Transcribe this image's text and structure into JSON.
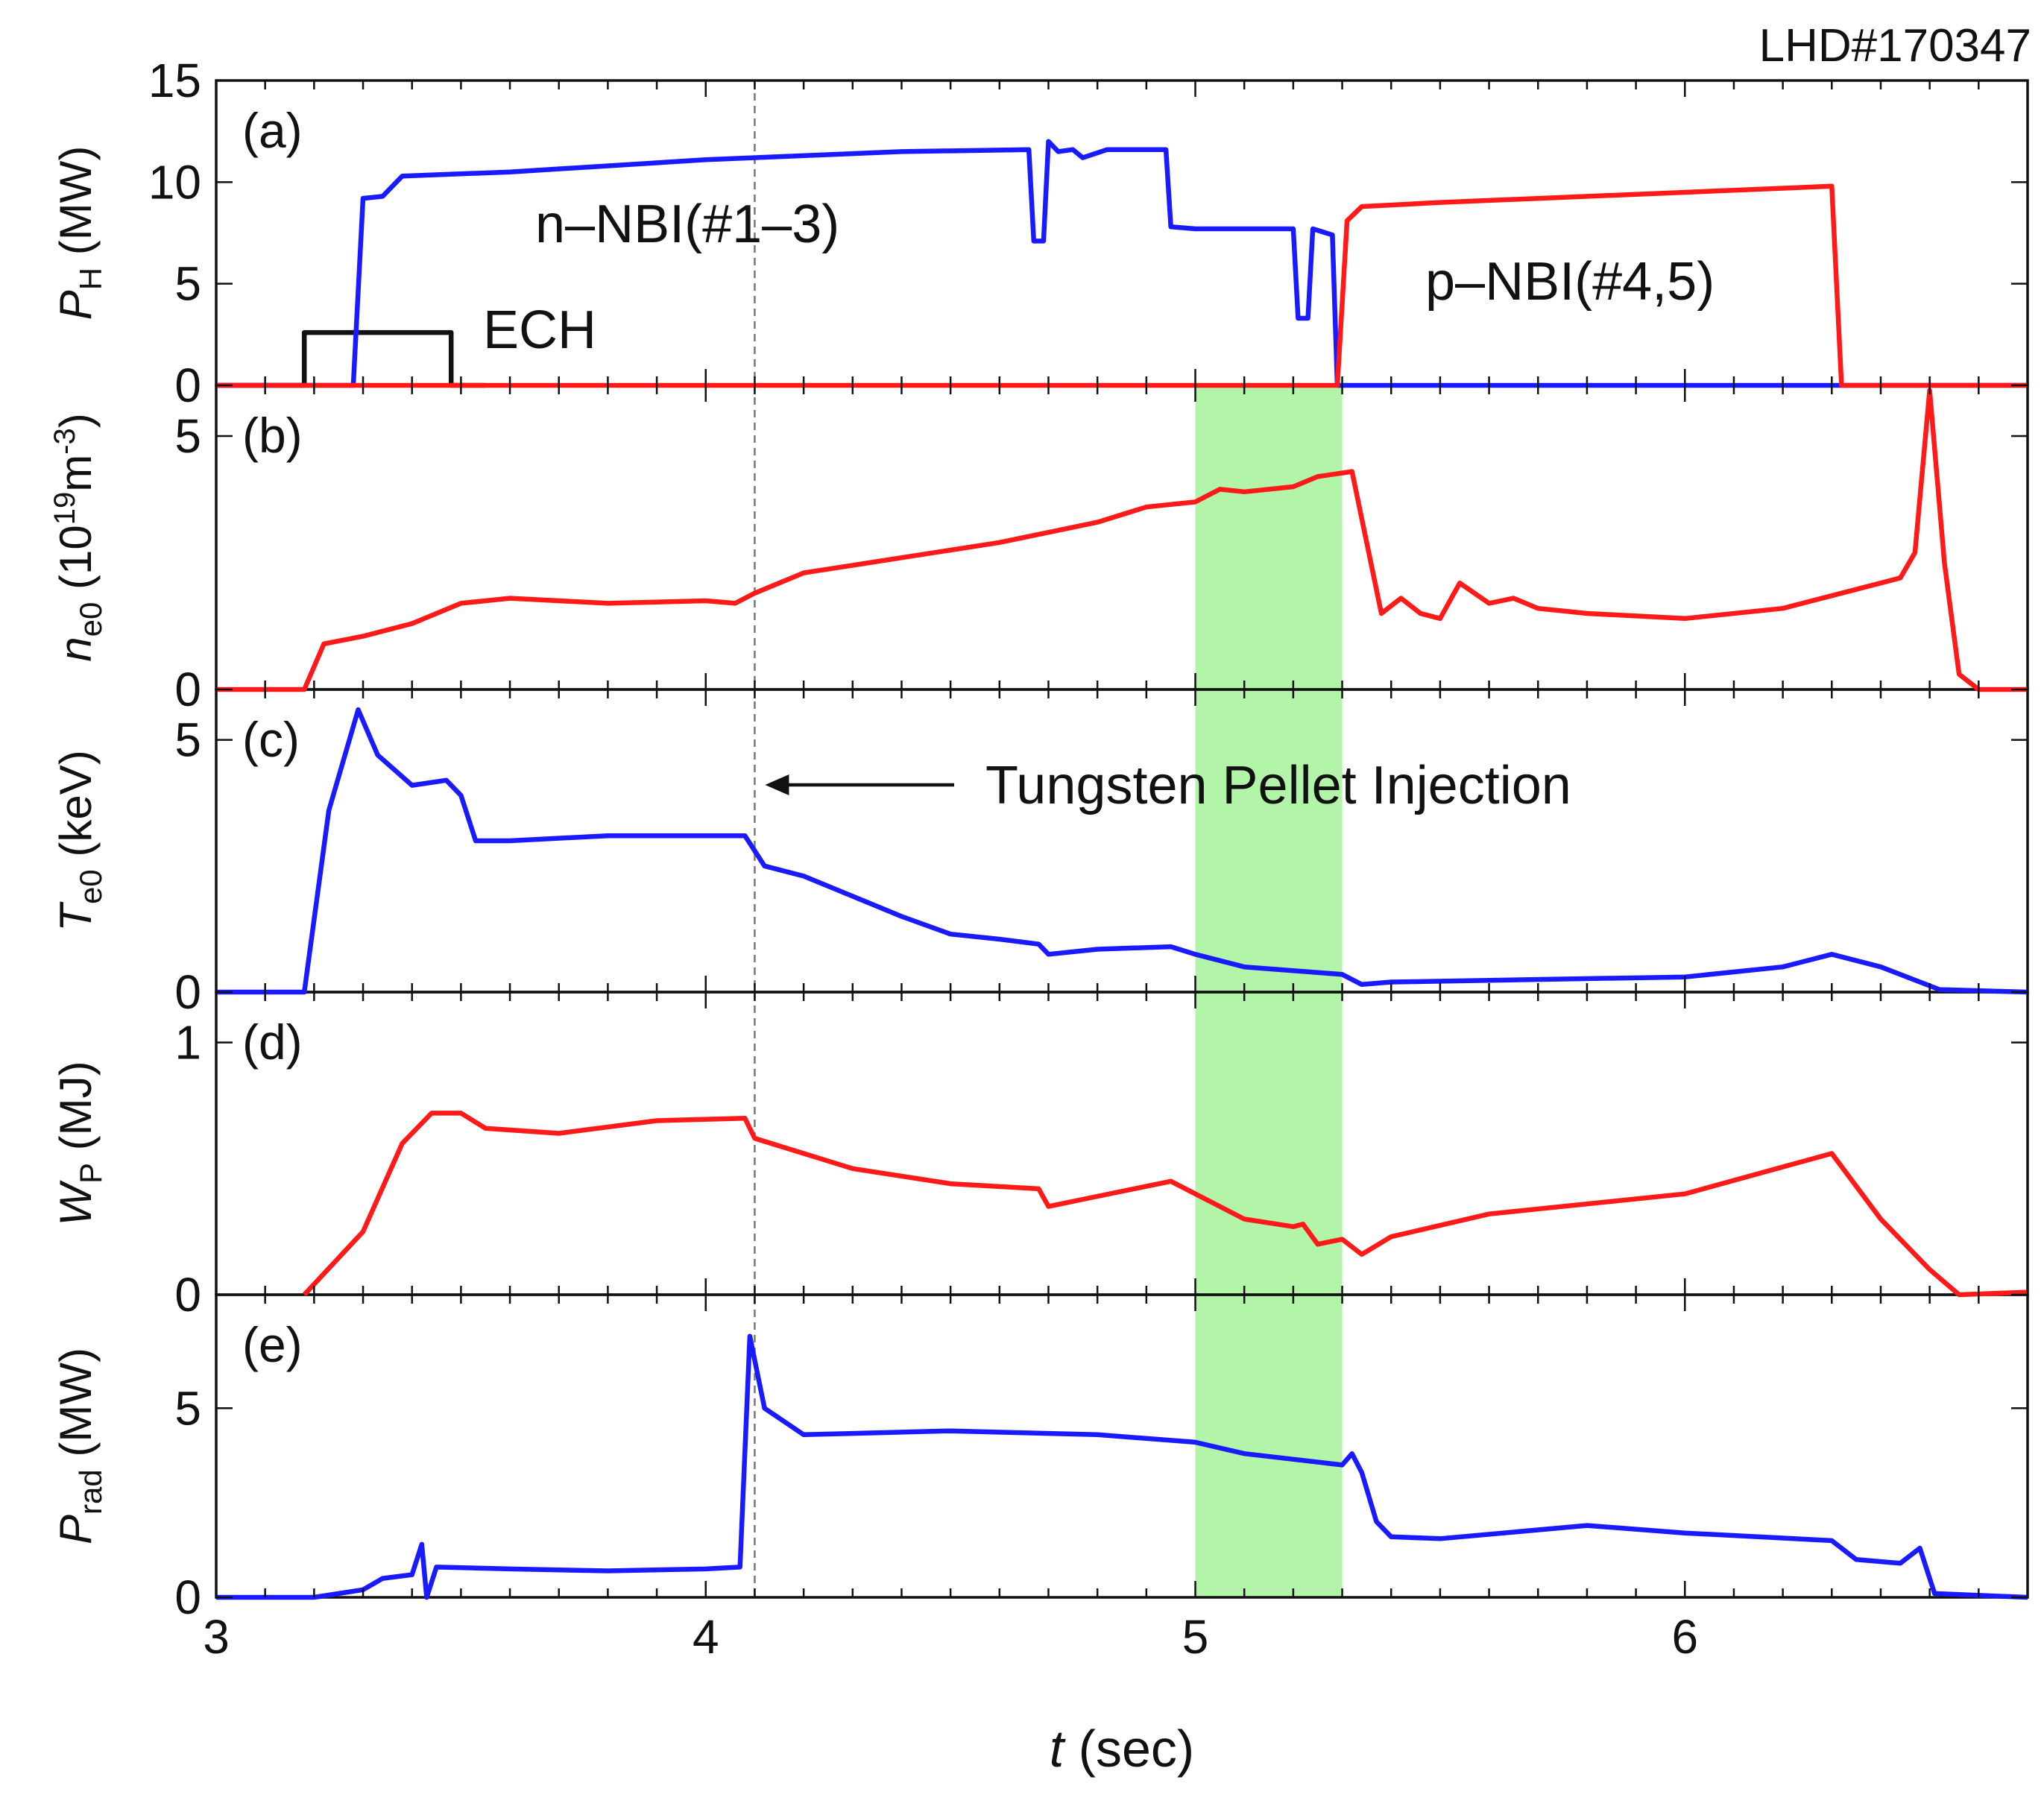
{
  "shot_label": "LHD#170347",
  "colors": {
    "blue": "#1a1aff",
    "red": "#ff1a1a",
    "black": "#111111",
    "shade": "#b3f5a8"
  },
  "chart_data": {
    "type": "line",
    "x_axis": {
      "label_italic": "t",
      "label_rest": " (sec)",
      "range": [
        3,
        6.7
      ],
      "ticks": [
        3,
        4,
        5,
        6
      ],
      "tick_labels": [
        "3",
        "4",
        "5",
        "6"
      ]
    },
    "shaded_interval": [
      5.0,
      5.3
    ],
    "pellet_time": 4.1,
    "annotations": {
      "pellet": "Tungsten Pellet Injection",
      "nnbi": "n–NBI(#1–3)",
      "pnbi": "p–NBI(#4,5)",
      "ech": "ECH"
    },
    "panels": [
      {
        "id": "a",
        "letter": "(a)",
        "ylabel": {
          "main": "P",
          "sub": "H",
          "unit": " (MW)"
        },
        "ylim": [
          0,
          15
        ],
        "yticks": [
          0,
          5,
          10,
          15
        ],
        "ytick_labels": [
          "0",
          "5",
          "10",
          "15"
        ],
        "series": [
          {
            "name": "ECH",
            "color": "black",
            "points": [
              [
                3.0,
                0
              ],
              [
                3.18,
                0
              ],
              [
                3.18,
                2.6
              ],
              [
                3.48,
                2.6
              ],
              [
                3.48,
                0
              ],
              [
                3.55,
                0
              ]
            ]
          },
          {
            "name": "n-NBI(#1-3)",
            "color": "blue",
            "points": [
              [
                3.0,
                0
              ],
              [
                3.28,
                0
              ],
              [
                3.3,
                9.2
              ],
              [
                3.34,
                9.3
              ],
              [
                3.38,
                10.3
              ],
              [
                3.6,
                10.5
              ],
              [
                4.0,
                11.1
              ],
              [
                4.4,
                11.5
              ],
              [
                4.66,
                11.6
              ],
              [
                4.67,
                7.1
              ],
              [
                4.69,
                7.1
              ],
              [
                4.7,
                12.0
              ],
              [
                4.72,
                11.5
              ],
              [
                4.75,
                11.6
              ],
              [
                4.77,
                11.2
              ],
              [
                4.82,
                11.6
              ],
              [
                4.94,
                11.6
              ],
              [
                4.95,
                7.8
              ],
              [
                5.0,
                7.7
              ],
              [
                5.2,
                7.7
              ],
              [
                5.21,
                3.3
              ],
              [
                5.23,
                3.3
              ],
              [
                5.24,
                7.7
              ],
              [
                5.28,
                7.4
              ],
              [
                5.29,
                0
              ],
              [
                6.7,
                0
              ]
            ]
          },
          {
            "name": "p-NBI(#4,5)",
            "color": "red",
            "points": [
              [
                3.0,
                0
              ],
              [
                5.29,
                0
              ],
              [
                5.31,
                8.1
              ],
              [
                5.34,
                8.8
              ],
              [
                5.5,
                9.0
              ],
              [
                6.0,
                9.5
              ],
              [
                6.3,
                9.8
              ],
              [
                6.3,
                9.8
              ],
              [
                6.32,
                0
              ],
              [
                6.7,
                0
              ]
            ]
          }
        ]
      },
      {
        "id": "b",
        "letter": "(b)",
        "ylabel": {
          "main": "n",
          "sub": "e0",
          "unit": " (10",
          "sup": "19",
          "unit2": "m",
          "sup2": "-3",
          "unit3": ")"
        },
        "ylim": [
          0,
          6
        ],
        "yticks": [
          0,
          5
        ],
        "ytick_labels": [
          "0",
          "5"
        ],
        "series": [
          {
            "name": "ne0",
            "color": "red",
            "points": [
              [
                3.0,
                0
              ],
              [
                3.18,
                0
              ],
              [
                3.22,
                0.9
              ],
              [
                3.3,
                1.05
              ],
              [
                3.4,
                1.3
              ],
              [
                3.5,
                1.7
              ],
              [
                3.6,
                1.8
              ],
              [
                3.8,
                1.7
              ],
              [
                4.0,
                1.75
              ],
              [
                4.06,
                1.7
              ],
              [
                4.1,
                1.9
              ],
              [
                4.2,
                2.3
              ],
              [
                4.4,
                2.6
              ],
              [
                4.6,
                2.9
              ],
              [
                4.8,
                3.3
              ],
              [
                4.9,
                3.6
              ],
              [
                5.0,
                3.7
              ],
              [
                5.05,
                3.95
              ],
              [
                5.1,
                3.9
              ],
              [
                5.2,
                4.0
              ],
              [
                5.25,
                4.2
              ],
              [
                5.32,
                4.3
              ],
              [
                5.35,
                2.9
              ],
              [
                5.38,
                1.5
              ],
              [
                5.42,
                1.8
              ],
              [
                5.46,
                1.5
              ],
              [
                5.5,
                1.4
              ],
              [
                5.54,
                2.1
              ],
              [
                5.6,
                1.7
              ],
              [
                5.65,
                1.8
              ],
              [
                5.7,
                1.6
              ],
              [
                5.8,
                1.5
              ],
              [
                6.0,
                1.4
              ],
              [
                6.2,
                1.6
              ],
              [
                6.4,
                2.1
              ],
              [
                6.44,
                2.2
              ],
              [
                6.47,
                2.7
              ],
              [
                6.5,
                5.9
              ],
              [
                6.53,
                2.5
              ],
              [
                6.56,
                0.3
              ],
              [
                6.6,
                0
              ],
              [
                6.7,
                0
              ]
            ]
          }
        ]
      },
      {
        "id": "c",
        "letter": "(c)",
        "ylabel": {
          "main": "T",
          "sub": "e0",
          "unit": " (keV)"
        },
        "ylim": [
          0,
          6
        ],
        "yticks": [
          0,
          5
        ],
        "ytick_labels": [
          "0",
          "5"
        ],
        "series": [
          {
            "name": "Te0",
            "color": "blue",
            "points": [
              [
                3.0,
                0
              ],
              [
                3.18,
                0
              ],
              [
                3.23,
                3.6
              ],
              [
                3.29,
                5.6
              ],
              [
                3.33,
                4.7
              ],
              [
                3.4,
                4.1
              ],
              [
                3.47,
                4.2
              ],
              [
                3.5,
                3.9
              ],
              [
                3.53,
                3.0
              ],
              [
                3.6,
                3.0
              ],
              [
                3.8,
                3.1
              ],
              [
                4.0,
                3.1
              ],
              [
                4.08,
                3.1
              ],
              [
                4.12,
                2.5
              ],
              [
                4.2,
                2.3
              ],
              [
                4.3,
                1.9
              ],
              [
                4.4,
                1.5
              ],
              [
                4.5,
                1.15
              ],
              [
                4.6,
                1.05
              ],
              [
                4.68,
                0.95
              ],
              [
                4.7,
                0.75
              ],
              [
                4.8,
                0.85
              ],
              [
                4.95,
                0.9
              ],
              [
                5.0,
                0.75
              ],
              [
                5.1,
                0.5
              ],
              [
                5.3,
                0.35
              ],
              [
                5.34,
                0.15
              ],
              [
                5.4,
                0.2
              ],
              [
                6.0,
                0.3
              ],
              [
                6.2,
                0.5
              ],
              [
                6.3,
                0.75
              ],
              [
                6.4,
                0.5
              ],
              [
                6.52,
                0.05
              ],
              [
                6.7,
                0
              ]
            ]
          }
        ]
      },
      {
        "id": "d",
        "letter": "(d)",
        "ylabel": {
          "main": "W",
          "sub": "P",
          "unit": " (MJ)"
        },
        "ylim": [
          0,
          1.2
        ],
        "yticks": [
          0,
          1
        ],
        "ytick_labels": [
          "0",
          "1"
        ],
        "series": [
          {
            "name": "Wp",
            "color": "red",
            "points": [
              [
                3.18,
                0
              ],
              [
                3.3,
                0.25
              ],
              [
                3.38,
                0.6
              ],
              [
                3.44,
                0.72
              ],
              [
                3.5,
                0.72
              ],
              [
                3.55,
                0.66
              ],
              [
                3.7,
                0.64
              ],
              [
                3.9,
                0.69
              ],
              [
                4.08,
                0.7
              ],
              [
                4.1,
                0.62
              ],
              [
                4.3,
                0.5
              ],
              [
                4.5,
                0.44
              ],
              [
                4.68,
                0.42
              ],
              [
                4.7,
                0.35
              ],
              [
                4.8,
                0.39
              ],
              [
                4.95,
                0.45
              ],
              [
                5.0,
                0.4
              ],
              [
                5.1,
                0.3
              ],
              [
                5.2,
                0.27
              ],
              [
                5.22,
                0.28
              ],
              [
                5.25,
                0.2
              ],
              [
                5.3,
                0.22
              ],
              [
                5.34,
                0.16
              ],
              [
                5.4,
                0.23
              ],
              [
                5.6,
                0.32
              ],
              [
                6.0,
                0.4
              ],
              [
                6.3,
                0.56
              ],
              [
                6.4,
                0.3
              ],
              [
                6.5,
                0.1
              ],
              [
                6.56,
                0.0
              ],
              [
                6.7,
                0.01
              ]
            ]
          }
        ]
      },
      {
        "id": "e",
        "letter": "(e)",
        "ylabel": {
          "main": "P",
          "sub": "rad",
          "unit": " (MW)"
        },
        "ylim": [
          0,
          8
        ],
        "yticks": [
          0,
          5
        ],
        "ytick_labels": [
          "0",
          "5"
        ],
        "series": [
          {
            "name": "Prad",
            "color": "blue",
            "points": [
              [
                3.0,
                0
              ],
              [
                3.2,
                0
              ],
              [
                3.3,
                0.2
              ],
              [
                3.34,
                0.5
              ],
              [
                3.4,
                0.6
              ],
              [
                3.42,
                1.4
              ],
              [
                3.43,
                0
              ],
              [
                3.45,
                0.8
              ],
              [
                3.6,
                0.75
              ],
              [
                3.8,
                0.7
              ],
              [
                4.0,
                0.75
              ],
              [
                4.07,
                0.8
              ],
              [
                4.09,
                6.9
              ],
              [
                4.12,
                5.0
              ],
              [
                4.2,
                4.3
              ],
              [
                4.5,
                4.4
              ],
              [
                4.8,
                4.3
              ],
              [
                5.0,
                4.1
              ],
              [
                5.1,
                3.8
              ],
              [
                5.3,
                3.5
              ],
              [
                5.32,
                3.8
              ],
              [
                5.34,
                3.3
              ],
              [
                5.37,
                2.0
              ],
              [
                5.4,
                1.6
              ],
              [
                5.5,
                1.55
              ],
              [
                5.8,
                1.9
              ],
              [
                6.0,
                1.7
              ],
              [
                6.3,
                1.5
              ],
              [
                6.35,
                1.0
              ],
              [
                6.44,
                0.9
              ],
              [
                6.48,
                1.3
              ],
              [
                6.51,
                0.1
              ],
              [
                6.7,
                0
              ]
            ]
          }
        ]
      }
    ]
  }
}
